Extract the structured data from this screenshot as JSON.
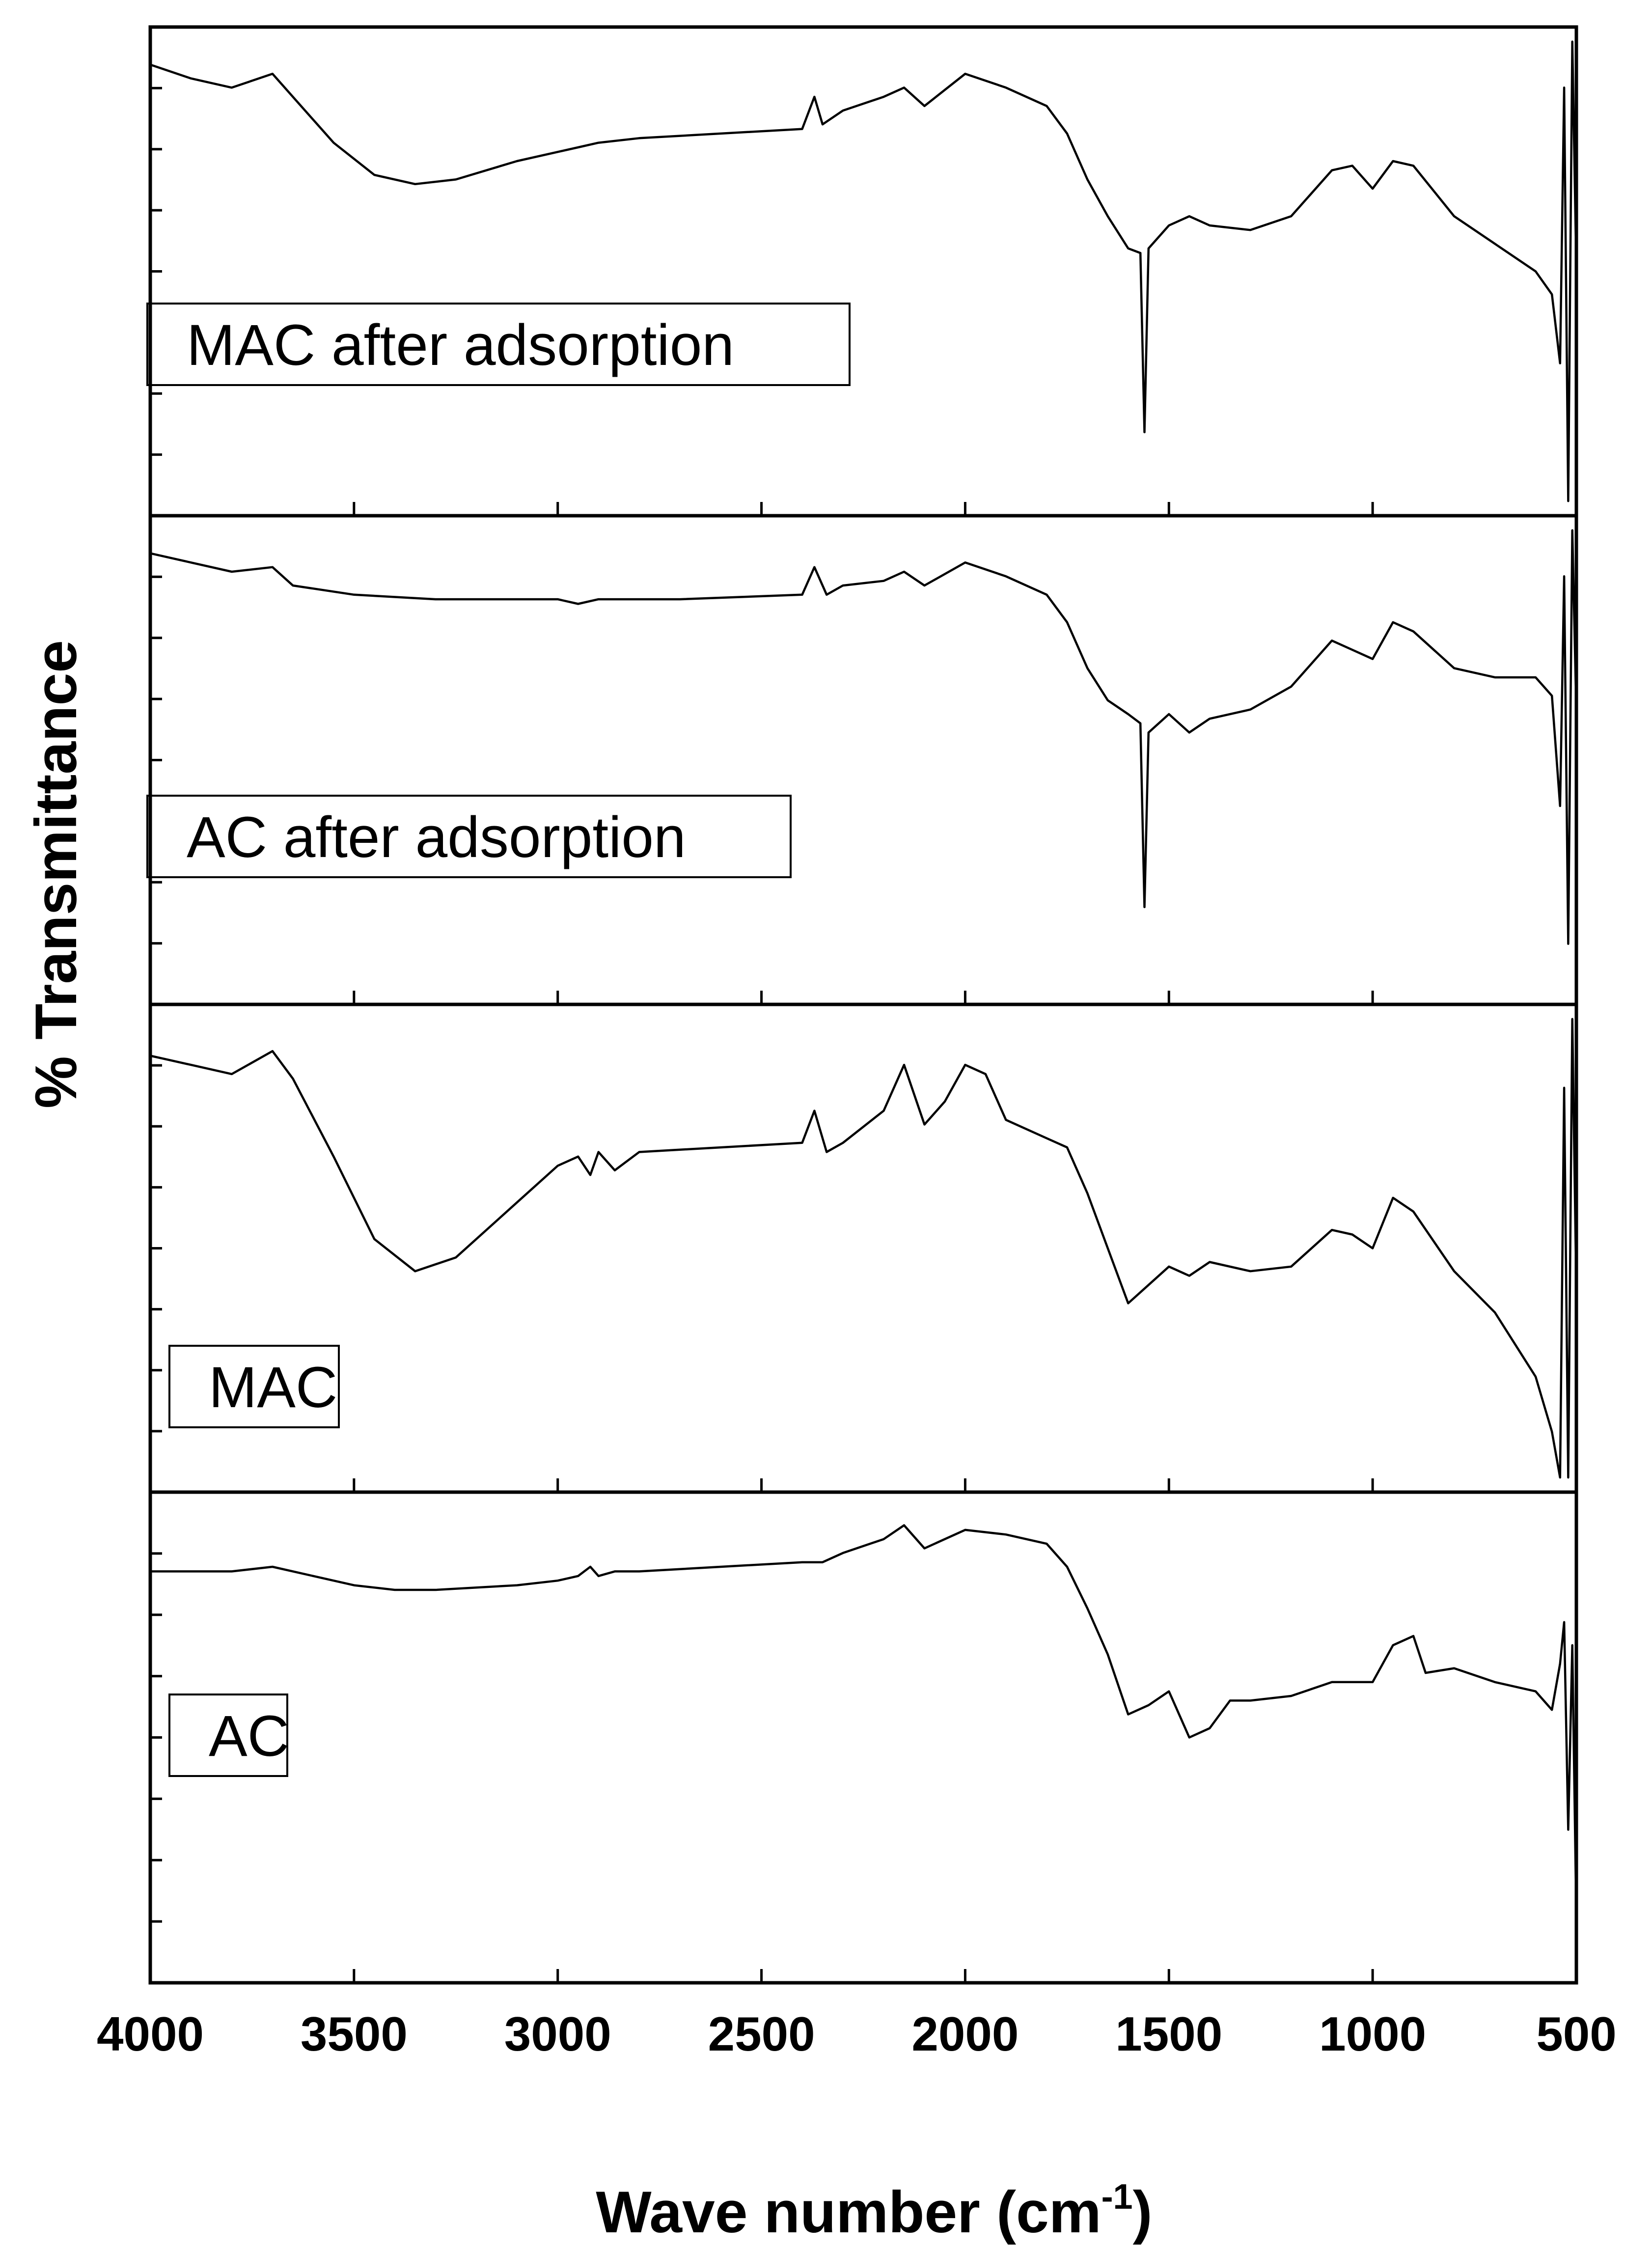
{
  "chart_data": {
    "type": "line",
    "title": "",
    "xlabel": "Wave number (cm",
    "xlabel_superscript": "-1",
    "xlabel_suffix": ")",
    "ylabel": "% Transmittance",
    "xlim": [
      4000,
      500
    ],
    "x_ticks": [
      4000,
      3500,
      3000,
      2500,
      2000,
      1500,
      1000,
      500
    ],
    "x_tick_labels": [
      "4000",
      "3500",
      "3000",
      "2500",
      "2000",
      "1500",
      "1000",
      "500"
    ],
    "grid": false,
    "layout": "stacked-panels",
    "line_color": "#000000",
    "series": [
      {
        "name": "MAC after adsorption",
        "points": [
          [
            4000,
            0.95
          ],
          [
            3900,
            0.92
          ],
          [
            3800,
            0.9
          ],
          [
            3700,
            0.93
          ],
          [
            3650,
            0.88
          ],
          [
            3550,
            0.78
          ],
          [
            3450,
            0.71
          ],
          [
            3350,
            0.69
          ],
          [
            3250,
            0.7
          ],
          [
            3100,
            0.74
          ],
          [
            3000,
            0.76
          ],
          [
            2950,
            0.77
          ],
          [
            2900,
            0.78
          ],
          [
            2800,
            0.79
          ],
          [
            2600,
            0.8
          ],
          [
            2400,
            0.81
          ],
          [
            2370,
            0.88
          ],
          [
            2350,
            0.82
          ],
          [
            2300,
            0.85
          ],
          [
            2200,
            0.88
          ],
          [
            2150,
            0.9
          ],
          [
            2100,
            0.86
          ],
          [
            2000,
            0.93
          ],
          [
            1900,
            0.9
          ],
          [
            1800,
            0.86
          ],
          [
            1750,
            0.8
          ],
          [
            1700,
            0.7
          ],
          [
            1650,
            0.62
          ],
          [
            1600,
            0.55
          ],
          [
            1570,
            0.54
          ],
          [
            1560,
            0.15
          ],
          [
            1550,
            0.55
          ],
          [
            1500,
            0.6
          ],
          [
            1450,
            0.62
          ],
          [
            1400,
            0.6
          ],
          [
            1300,
            0.59
          ],
          [
            1200,
            0.62
          ],
          [
            1100,
            0.72
          ],
          [
            1050,
            0.73
          ],
          [
            1000,
            0.68
          ],
          [
            950,
            0.74
          ],
          [
            900,
            0.73
          ],
          [
            800,
            0.62
          ],
          [
            700,
            0.56
          ],
          [
            600,
            0.5
          ],
          [
            560,
            0.45
          ],
          [
            540,
            0.3
          ],
          [
            530,
            0.9
          ],
          [
            520,
            0.0
          ],
          [
            510,
            1.0
          ],
          [
            500,
            0.5
          ]
        ]
      },
      {
        "name": "AC after adsorption",
        "points": [
          [
            4000,
            0.95
          ],
          [
            3900,
            0.93
          ],
          [
            3800,
            0.91
          ],
          [
            3700,
            0.92
          ],
          [
            3650,
            0.88
          ],
          [
            3500,
            0.86
          ],
          [
            3300,
            0.85
          ],
          [
            3100,
            0.85
          ],
          [
            3000,
            0.85
          ],
          [
            2950,
            0.84
          ],
          [
            2900,
            0.85
          ],
          [
            2700,
            0.85
          ],
          [
            2400,
            0.86
          ],
          [
            2370,
            0.92
          ],
          [
            2340,
            0.86
          ],
          [
            2300,
            0.88
          ],
          [
            2200,
            0.89
          ],
          [
            2150,
            0.91
          ],
          [
            2100,
            0.88
          ],
          [
            2000,
            0.93
          ],
          [
            1900,
            0.9
          ],
          [
            1800,
            0.86
          ],
          [
            1750,
            0.8
          ],
          [
            1700,
            0.7
          ],
          [
            1650,
            0.63
          ],
          [
            1600,
            0.6
          ],
          [
            1570,
            0.58
          ],
          [
            1560,
            0.18
          ],
          [
            1550,
            0.56
          ],
          [
            1500,
            0.6
          ],
          [
            1450,
            0.56
          ],
          [
            1400,
            0.59
          ],
          [
            1300,
            0.61
          ],
          [
            1200,
            0.66
          ],
          [
            1100,
            0.76
          ],
          [
            1050,
            0.74
          ],
          [
            1000,
            0.72
          ],
          [
            950,
            0.8
          ],
          [
            900,
            0.78
          ],
          [
            800,
            0.7
          ],
          [
            700,
            0.68
          ],
          [
            600,
            0.68
          ],
          [
            560,
            0.64
          ],
          [
            540,
            0.4
          ],
          [
            530,
            0.9
          ],
          [
            520,
            0.1
          ],
          [
            510,
            1.0
          ],
          [
            500,
            0.6
          ]
        ]
      },
      {
        "name": "MAC",
        "points": [
          [
            4000,
            0.92
          ],
          [
            3900,
            0.9
          ],
          [
            3800,
            0.88
          ],
          [
            3700,
            0.93
          ],
          [
            3650,
            0.87
          ],
          [
            3550,
            0.7
          ],
          [
            3450,
            0.52
          ],
          [
            3350,
            0.45
          ],
          [
            3250,
            0.48
          ],
          [
            3100,
            0.6
          ],
          [
            3000,
            0.68
          ],
          [
            2950,
            0.7
          ],
          [
            2920,
            0.66
          ],
          [
            2900,
            0.71
          ],
          [
            2860,
            0.67
          ],
          [
            2800,
            0.71
          ],
          [
            2600,
            0.72
          ],
          [
            2400,
            0.73
          ],
          [
            2370,
            0.8
          ],
          [
            2340,
            0.71
          ],
          [
            2300,
            0.73
          ],
          [
            2200,
            0.8
          ],
          [
            2150,
            0.9
          ],
          [
            2100,
            0.77
          ],
          [
            2050,
            0.82
          ],
          [
            2000,
            0.9
          ],
          [
            1950,
            0.88
          ],
          [
            1900,
            0.78
          ],
          [
            1800,
            0.74
          ],
          [
            1750,
            0.72
          ],
          [
            1700,
            0.62
          ],
          [
            1650,
            0.5
          ],
          [
            1600,
            0.38
          ],
          [
            1550,
            0.42
          ],
          [
            1500,
            0.46
          ],
          [
            1450,
            0.44
          ],
          [
            1400,
            0.47
          ],
          [
            1300,
            0.45
          ],
          [
            1200,
            0.46
          ],
          [
            1100,
            0.54
          ],
          [
            1050,
            0.53
          ],
          [
            1000,
            0.5
          ],
          [
            950,
            0.61
          ],
          [
            900,
            0.58
          ],
          [
            800,
            0.45
          ],
          [
            700,
            0.36
          ],
          [
            600,
            0.22
          ],
          [
            560,
            0.1
          ],
          [
            540,
            0.0
          ],
          [
            530,
            0.85
          ],
          [
            520,
            0.0
          ],
          [
            510,
            1.0
          ],
          [
            500,
            0.4
          ]
        ]
      },
      {
        "name": "AC",
        "points": [
          [
            4000,
            0.86
          ],
          [
            3900,
            0.86
          ],
          [
            3800,
            0.86
          ],
          [
            3700,
            0.87
          ],
          [
            3600,
            0.85
          ],
          [
            3500,
            0.83
          ],
          [
            3400,
            0.82
          ],
          [
            3300,
            0.82
          ],
          [
            3100,
            0.83
          ],
          [
            3000,
            0.84
          ],
          [
            2950,
            0.85
          ],
          [
            2920,
            0.87
          ],
          [
            2900,
            0.85
          ],
          [
            2860,
            0.86
          ],
          [
            2800,
            0.86
          ],
          [
            2600,
            0.87
          ],
          [
            2400,
            0.88
          ],
          [
            2350,
            0.88
          ],
          [
            2300,
            0.9
          ],
          [
            2200,
            0.93
          ],
          [
            2150,
            0.96
          ],
          [
            2100,
            0.91
          ],
          [
            2050,
            0.93
          ],
          [
            2000,
            0.95
          ],
          [
            1900,
            0.94
          ],
          [
            1800,
            0.92
          ],
          [
            1750,
            0.87
          ],
          [
            1700,
            0.78
          ],
          [
            1650,
            0.68
          ],
          [
            1600,
            0.55
          ],
          [
            1550,
            0.57
          ],
          [
            1500,
            0.6
          ],
          [
            1450,
            0.5
          ],
          [
            1400,
            0.52
          ],
          [
            1350,
            0.58
          ],
          [
            1300,
            0.58
          ],
          [
            1200,
            0.59
          ],
          [
            1100,
            0.62
          ],
          [
            1000,
            0.62
          ],
          [
            950,
            0.7
          ],
          [
            900,
            0.72
          ],
          [
            870,
            0.64
          ],
          [
            800,
            0.65
          ],
          [
            700,
            0.62
          ],
          [
            600,
            0.6
          ],
          [
            560,
            0.56
          ],
          [
            540,
            0.66
          ],
          [
            530,
            0.75
          ],
          [
            520,
            0.3
          ],
          [
            510,
            0.7
          ],
          [
            500,
            0.1
          ]
        ]
      }
    ]
  }
}
